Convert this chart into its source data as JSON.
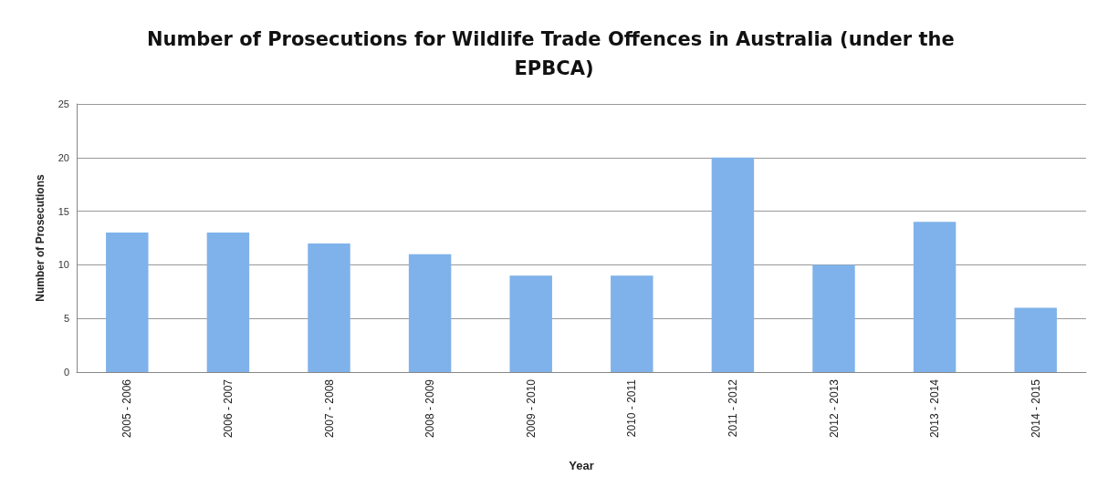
{
  "chart_data": {
    "type": "bar",
    "title": "Number of Prosecutions for Wildlife Trade Offences in Australia (under the EPBCA)",
    "xlabel": "Year",
    "ylabel": "Number of Prosecutions",
    "categories": [
      "2005 - 2006",
      "2006 - 2007",
      "2007 - 2008",
      "2008 - 2009",
      "2009 - 2010",
      "2010 - 2011",
      "2011 - 2012",
      "2012 - 2013",
      "2013 - 2014",
      "2014 - 2015"
    ],
    "values": [
      13,
      13,
      12,
      11,
      9,
      9,
      20,
      10,
      14,
      6
    ],
    "color": "#7fb2ea",
    "ylim": [
      0,
      25
    ],
    "yticks": [
      0,
      5,
      10,
      15,
      20,
      25
    ],
    "grid": "y"
  }
}
